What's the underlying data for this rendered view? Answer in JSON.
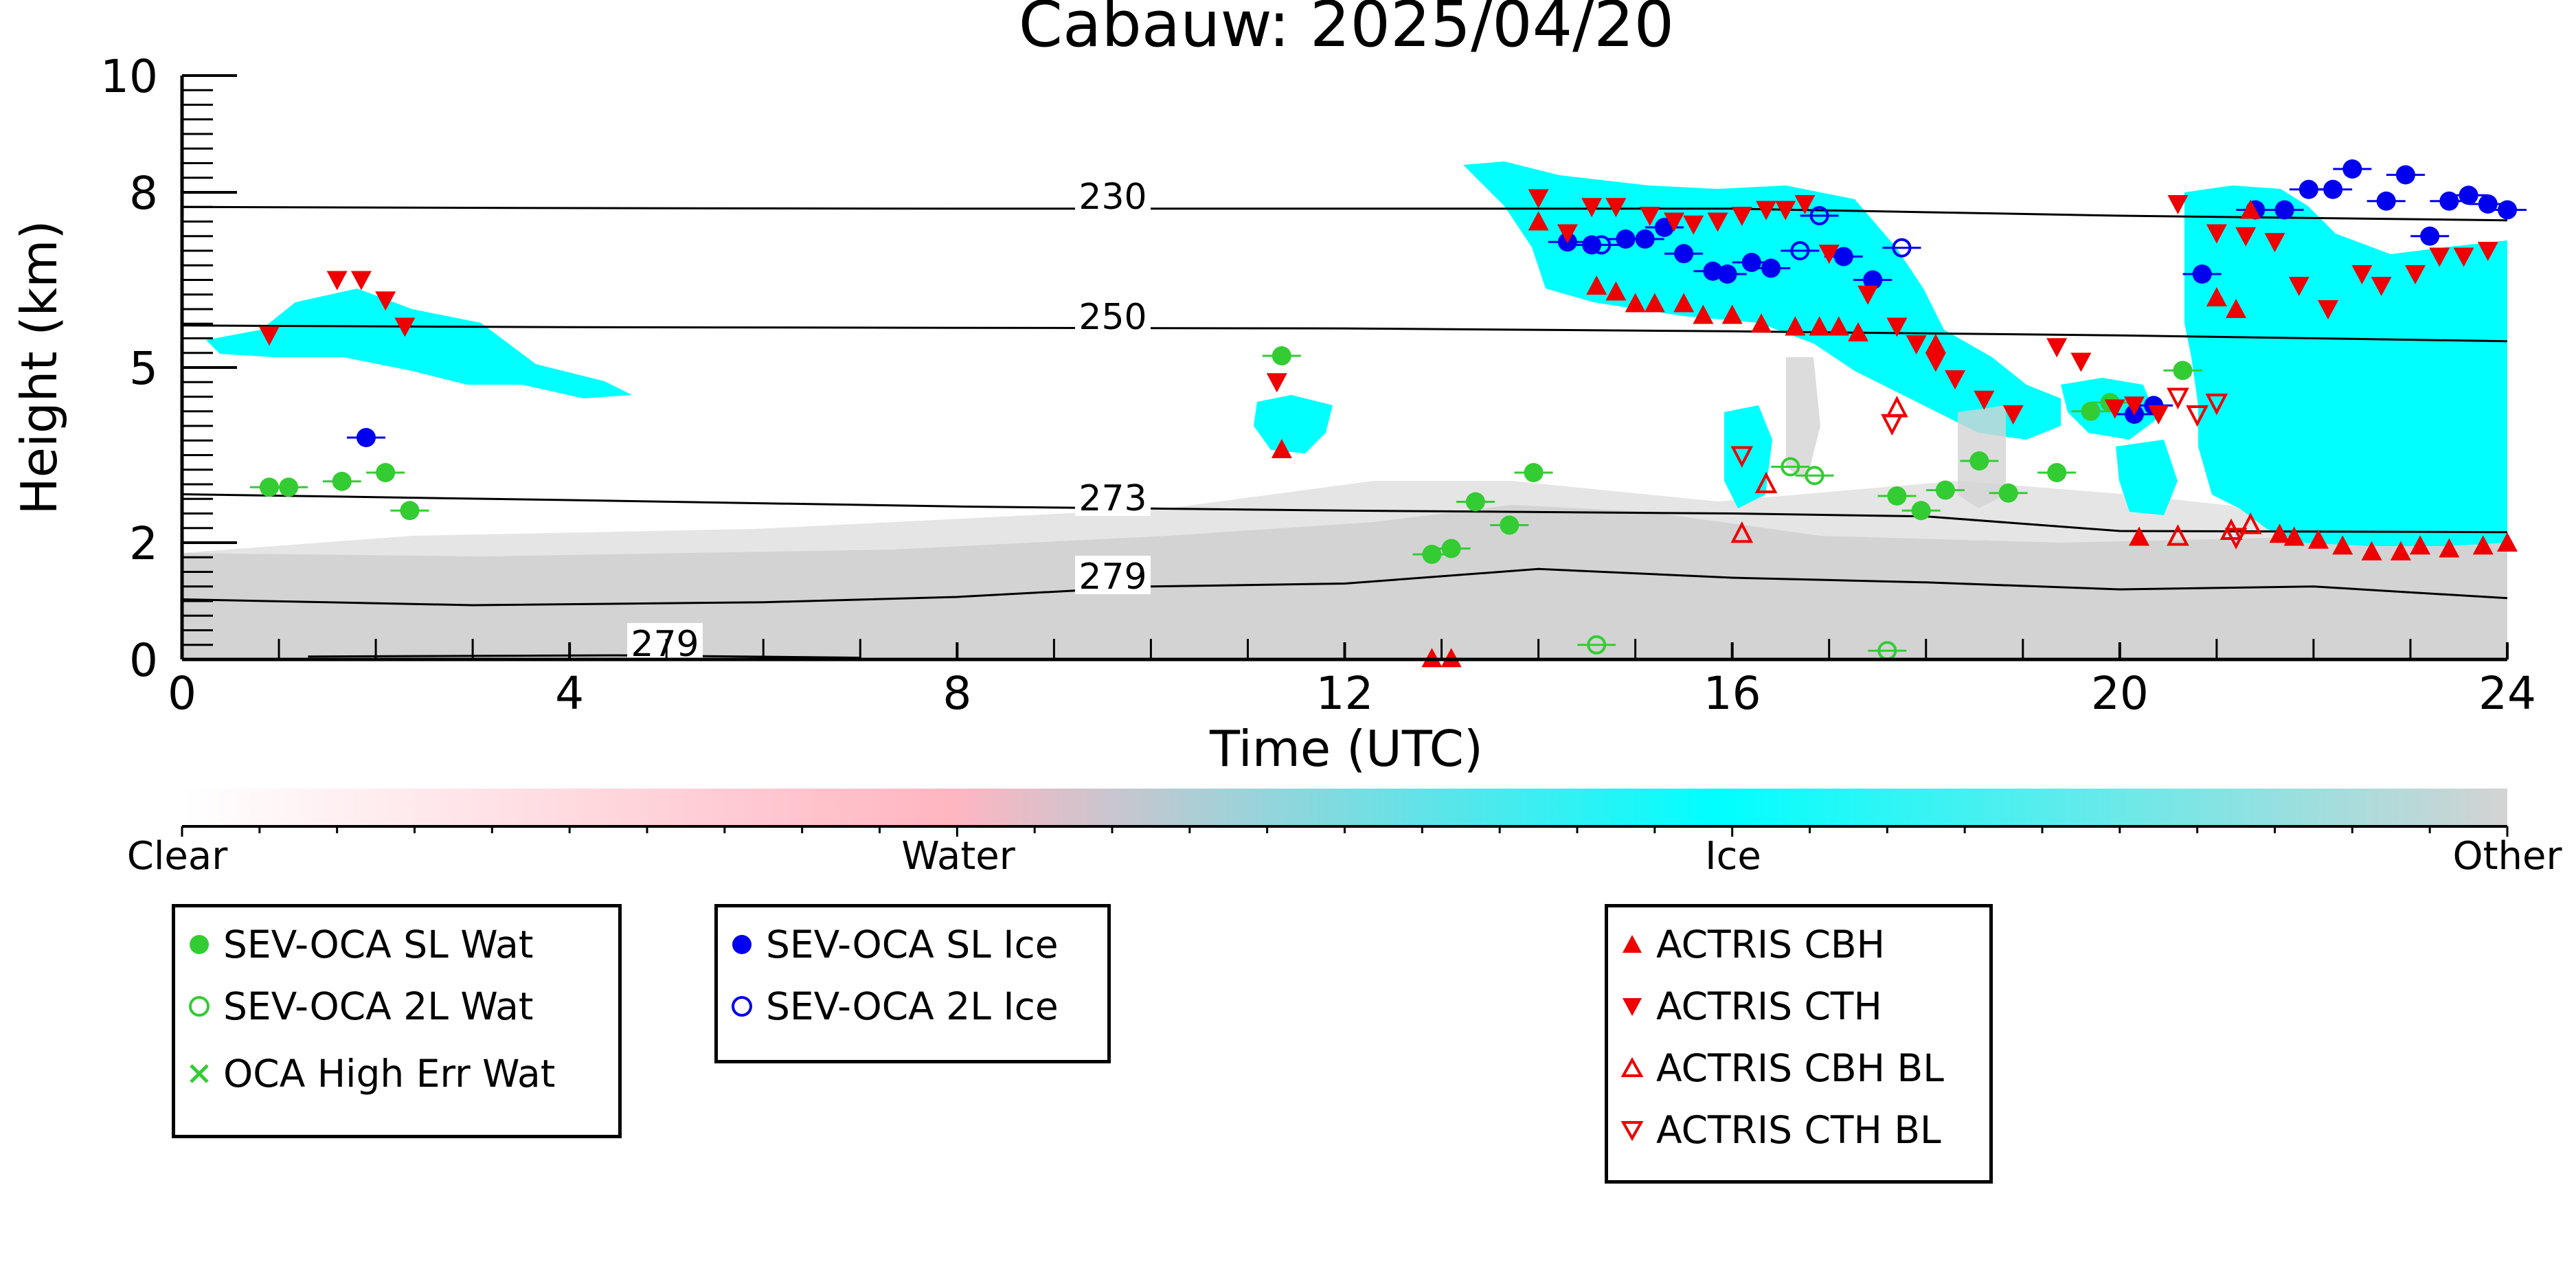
{
  "chart_data": {
    "type": "scatter",
    "title": "Cabauw: 2025/04/20",
    "xlabel": "Time (UTC)",
    "ylabel": "Height (km)",
    "xlim": [
      0,
      24
    ],
    "ylim": [
      0,
      10
    ],
    "x_ticks": [
      "0",
      "4",
      "8",
      "12",
      "16",
      "20",
      "24"
    ],
    "x_tick_values": [
      0,
      4,
      8,
      12,
      16,
      20,
      24
    ],
    "y_ticks": [
      "0",
      "2",
      "5",
      "8",
      "10"
    ],
    "y_tick_values": [
      0,
      2,
      5,
      8,
      10
    ],
    "colorbar": {
      "labels": [
        "Clear",
        "Water",
        "Ice",
        "Other"
      ],
      "colors": [
        "#ffffff",
        "#ffb6c1",
        "#00ffff",
        "#d3d3d3"
      ]
    },
    "contours": [
      {
        "label": "230",
        "points": [
          [
            0,
            7.75
          ],
          [
            4,
            7.73
          ],
          [
            8,
            7.72
          ],
          [
            12,
            7.72
          ],
          [
            16,
            7.72
          ],
          [
            20,
            7.6
          ],
          [
            24,
            7.52
          ]
        ]
      },
      {
        "label": "250",
        "points": [
          [
            0,
            5.72
          ],
          [
            4,
            5.69
          ],
          [
            8,
            5.68
          ],
          [
            12,
            5.67
          ],
          [
            16,
            5.62
          ],
          [
            20,
            5.55
          ],
          [
            24,
            5.45
          ]
        ]
      },
      {
        "label": "273",
        "points": [
          [
            0,
            2.83
          ],
          [
            4,
            2.73
          ],
          [
            8,
            2.62
          ],
          [
            12,
            2.55
          ],
          [
            16,
            2.5
          ],
          [
            18,
            2.45
          ],
          [
            20,
            2.2
          ],
          [
            24,
            2.18
          ]
        ]
      },
      {
        "label": "279",
        "points": [
          [
            0,
            1.03
          ],
          [
            3,
            0.93
          ],
          [
            6,
            0.98
          ],
          [
            8,
            1.07
          ],
          [
            10,
            1.25
          ],
          [
            12,
            1.3
          ],
          [
            14,
            1.55
          ],
          [
            16,
            1.4
          ],
          [
            18,
            1.32
          ],
          [
            20,
            1.2
          ],
          [
            22,
            1.25
          ],
          [
            24,
            1.05
          ]
        ]
      },
      {
        "label": "279",
        "points": [
          [
            1.3,
            0.05
          ],
          [
            4.5,
            0.07
          ],
          [
            7,
            0.03
          ]
        ]
      }
    ],
    "series": [
      {
        "name": "SEV-OCA SL Wat",
        "color": "#33cc33",
        "marker": "circle-filled",
        "points": [
          [
            0.9,
            2.95
          ],
          [
            1.1,
            2.95
          ],
          [
            1.65,
            3.05
          ],
          [
            2.1,
            3.2
          ],
          [
            2.35,
            2.55
          ],
          [
            11.35,
            5.2
          ],
          [
            12.9,
            1.8
          ],
          [
            13.1,
            1.9
          ],
          [
            13.35,
            2.7
          ],
          [
            13.7,
            2.3
          ],
          [
            13.95,
            3.2
          ],
          [
            17.7,
            2.8
          ],
          [
            17.95,
            2.55
          ],
          [
            18.2,
            2.9
          ],
          [
            18.55,
            3.4
          ],
          [
            18.85,
            2.85
          ],
          [
            19.35,
            3.2
          ],
          [
            19.7,
            4.25
          ],
          [
            19.9,
            4.4
          ],
          [
            20.65,
            4.95
          ]
        ]
      },
      {
        "name": "SEV-OCA 2L Wat",
        "color": "#33cc33",
        "marker": "circle-open",
        "points": [
          [
            14.6,
            0.25
          ],
          [
            16.6,
            3.3
          ],
          [
            16.85,
            3.15
          ],
          [
            17.6,
            0.15
          ]
        ]
      },
      {
        "name": "OCA High Err Wat",
        "color": "#33cc33",
        "marker": "x",
        "points": []
      },
      {
        "name": "SEV-OCA SL Ice",
        "color": "#0000ee",
        "marker": "circle-filled",
        "points": [
          [
            1.9,
            3.8
          ],
          [
            14.3,
            7.15
          ],
          [
            14.55,
            7.1
          ],
          [
            14.9,
            7.2
          ],
          [
            15.1,
            7.2
          ],
          [
            15.3,
            7.4
          ],
          [
            15.5,
            6.95
          ],
          [
            15.8,
            6.65
          ],
          [
            15.95,
            6.6
          ],
          [
            16.2,
            6.8
          ],
          [
            16.4,
            6.7
          ],
          [
            17.15,
            6.9
          ],
          [
            17.45,
            6.5
          ],
          [
            20.15,
            4.2
          ],
          [
            20.35,
            4.35
          ],
          [
            20.85,
            6.6
          ],
          [
            21.4,
            7.7
          ],
          [
            21.7,
            7.7
          ],
          [
            21.95,
            8.05
          ],
          [
            22.2,
            8.05
          ],
          [
            22.4,
            8.4
          ],
          [
            22.75,
            7.85
          ],
          [
            22.95,
            8.3
          ],
          [
            23.2,
            7.25
          ],
          [
            23.4,
            7.85
          ],
          [
            23.6,
            7.95
          ],
          [
            23.8,
            7.8
          ],
          [
            24,
            7.7
          ]
        ]
      },
      {
        "name": "SEV-OCA 2L Ice",
        "color": "#0000ee",
        "marker": "circle-open",
        "points": [
          [
            14.65,
            7.1
          ],
          [
            16.7,
            7.0
          ],
          [
            16.9,
            7.6
          ],
          [
            17.75,
            7.05
          ]
        ]
      },
      {
        "name": "ACTRIS CBH",
        "color": "#ee0000",
        "marker": "triangle-up-filled",
        "points": [
          [
            11.35,
            3.6
          ],
          [
            12.9,
            0.02
          ],
          [
            13.1,
            0.02
          ],
          [
            14.0,
            7.5
          ],
          [
            14.6,
            6.4
          ],
          [
            14.8,
            6.3
          ],
          [
            15.0,
            6.1
          ],
          [
            15.2,
            6.1
          ],
          [
            15.5,
            6.1
          ],
          [
            15.7,
            5.9
          ],
          [
            16.0,
            5.9
          ],
          [
            16.3,
            5.75
          ],
          [
            16.65,
            5.7
          ],
          [
            16.9,
            5.7
          ],
          [
            17.1,
            5.7
          ],
          [
            17.3,
            5.6
          ],
          [
            18.1,
            5.4
          ],
          [
            20.2,
            2.1
          ],
          [
            21.0,
            6.2
          ],
          [
            21.2,
            6.0
          ],
          [
            21.35,
            7.7
          ],
          [
            21.65,
            2.15
          ],
          [
            21.8,
            2.1
          ],
          [
            22.05,
            2.05
          ],
          [
            22.3,
            1.95
          ],
          [
            22.6,
            1.85
          ],
          [
            22.9,
            1.85
          ],
          [
            23.1,
            1.95
          ],
          [
            23.4,
            1.9
          ],
          [
            23.75,
            1.95
          ],
          [
            24.0,
            2.0
          ]
        ]
      },
      {
        "name": "ACTRIS CTH",
        "color": "#ee0000",
        "marker": "triangle-down-filled",
        "points": [
          [
            0.9,
            5.55
          ],
          [
            1.6,
            6.5
          ],
          [
            1.85,
            6.5
          ],
          [
            2.1,
            6.15
          ],
          [
            2.3,
            5.7
          ],
          [
            11.3,
            4.75
          ],
          [
            14.0,
            7.9
          ],
          [
            14.3,
            7.3
          ],
          [
            14.55,
            7.75
          ],
          [
            14.8,
            7.75
          ],
          [
            15.15,
            7.6
          ],
          [
            15.4,
            7.5
          ],
          [
            15.6,
            7.45
          ],
          [
            15.85,
            7.5
          ],
          [
            16.1,
            7.6
          ],
          [
            16.35,
            7.7
          ],
          [
            16.55,
            7.7
          ],
          [
            16.75,
            7.8
          ],
          [
            17.0,
            6.95
          ],
          [
            17.4,
            6.25
          ],
          [
            17.7,
            5.7
          ],
          [
            17.9,
            5.4
          ],
          [
            18.1,
            5.1
          ],
          [
            18.3,
            4.8
          ],
          [
            18.6,
            4.45
          ],
          [
            18.9,
            4.2
          ],
          [
            19.35,
            5.35
          ],
          [
            19.6,
            5.1
          ],
          [
            19.95,
            4.3
          ],
          [
            20.15,
            4.35
          ],
          [
            20.4,
            4.2
          ],
          [
            20.6,
            7.8
          ],
          [
            21.0,
            7.3
          ],
          [
            21.3,
            7.25
          ],
          [
            21.6,
            7.15
          ],
          [
            21.85,
            6.4
          ],
          [
            22.15,
            6.0
          ],
          [
            22.5,
            6.6
          ],
          [
            22.7,
            6.4
          ],
          [
            23.05,
            6.6
          ],
          [
            23.3,
            6.9
          ],
          [
            23.55,
            6.9
          ],
          [
            23.8,
            7.0
          ]
        ]
      },
      {
        "name": "ACTRIS CBH BL",
        "color": "#ee0000",
        "marker": "triangle-up-open",
        "points": [
          [
            16.1,
            2.15
          ],
          [
            16.35,
            3.0
          ],
          [
            17.7,
            4.3
          ],
          [
            20.6,
            2.1
          ],
          [
            21.15,
            2.2
          ],
          [
            21.35,
            2.3
          ]
        ]
      },
      {
        "name": "ACTRIS CTH BL",
        "color": "#ee0000",
        "marker": "triangle-down-open",
        "points": [
          [
            16.1,
            3.5
          ],
          [
            17.65,
            4.05
          ],
          [
            20.6,
            4.5
          ],
          [
            20.8,
            4.2
          ],
          [
            21.0,
            4.4
          ],
          [
            21.2,
            2.1
          ]
        ]
      }
    ]
  },
  "legends": [
    {
      "entries": [
        {
          "label": "SEV-OCA SL Wat",
          "color": "#33cc33",
          "marker": "circle-filled"
        },
        {
          "label": "SEV-OCA 2L Wat",
          "color": "#33cc33",
          "marker": "circle-open"
        },
        {
          "label": "OCA High Err Wat",
          "color": "#33cc33",
          "marker": "x"
        }
      ]
    },
    {
      "entries": [
        {
          "label": "SEV-OCA SL Ice",
          "color": "#0000ee",
          "marker": "circle-filled"
        },
        {
          "label": "SEV-OCA 2L Ice",
          "color": "#0000ee",
          "marker": "circle-open"
        }
      ]
    },
    {
      "entries": [
        {
          "label": "ACTRIS CBH",
          "color": "#ee0000",
          "marker": "triangle-up-filled"
        },
        {
          "label": "ACTRIS CTH",
          "color": "#ee0000",
          "marker": "triangle-down-filled"
        },
        {
          "label": "ACTRIS CBH BL",
          "color": "#ee0000",
          "marker": "triangle-up-open"
        },
        {
          "label": "ACTRIS CTH BL",
          "color": "#ee0000",
          "marker": "triangle-down-open"
        }
      ]
    }
  ]
}
